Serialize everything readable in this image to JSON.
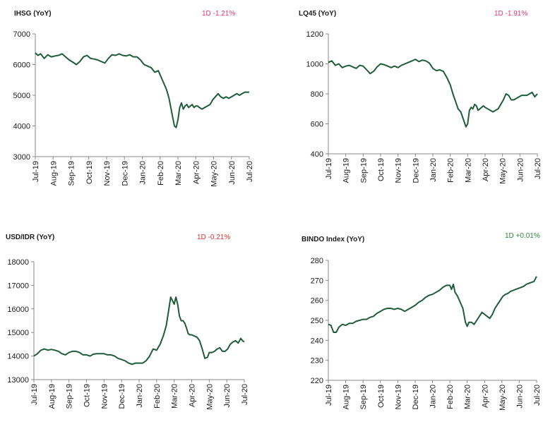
{
  "chart_data": [
    {
      "type": "line",
      "title": "IHSG (YoY)",
      "change_label": "1D -1.21%",
      "change_color": "#e8336e",
      "line_color": "#1f5c3a",
      "xlabel": "",
      "ylabel": "",
      "ylim": [
        3000,
        7000
      ],
      "yticks": [
        3000,
        4000,
        5000,
        6000,
        7000
      ],
      "xticks": [
        "Jul-19",
        "Aug-19",
        "Sep-19",
        "Oct-19",
        "Nov-19",
        "Dec-19",
        "Jan-20",
        "Feb-20",
        "Mar-20",
        "Apr-20",
        "May-20",
        "Jun-20",
        "Jul-20"
      ],
      "grid": false,
      "series": [
        {
          "x": [
            0,
            0.15,
            0.3,
            0.5,
            0.7,
            0.9,
            1.1,
            1.3,
            1.5,
            1.7,
            1.9,
            2.1,
            2.3,
            2.5,
            2.7,
            2.9,
            3.1,
            3.3,
            3.5,
            3.7,
            3.9,
            4.1,
            4.3,
            4.5,
            4.7,
            4.9,
            5.1,
            5.3,
            5.5,
            5.7,
            5.9,
            6.1,
            6.3,
            6.5,
            6.7,
            6.9,
            7.05,
            7.2,
            7.35,
            7.5,
            7.6,
            7.7,
            7.8,
            7.9,
            8.0,
            8.1,
            8.2,
            8.3,
            8.4,
            8.5,
            8.6,
            8.7,
            8.8,
            8.9,
            9.0,
            9.1,
            9.2,
            9.35,
            9.5,
            9.65,
            9.8,
            9.95,
            10.1,
            10.25,
            10.4,
            10.55,
            10.7,
            10.85,
            11.0,
            11.15,
            11.3,
            11.45,
            11.6,
            11.75,
            11.9,
            12.0
          ],
          "values": [
            6380,
            6300,
            6350,
            6200,
            6320,
            6250,
            6280,
            6300,
            6350,
            6250,
            6150,
            6080,
            6000,
            6100,
            6250,
            6300,
            6200,
            6180,
            6150,
            6100,
            6050,
            6200,
            6320,
            6300,
            6350,
            6300,
            6280,
            6320,
            6250,
            6250,
            6150,
            6000,
            5950,
            5900,
            5750,
            5800,
            5600,
            5400,
            5200,
            4900,
            4600,
            4300,
            4000,
            3950,
            4200,
            4600,
            4750,
            4550,
            4650,
            4700,
            4600,
            4650,
            4700,
            4600,
            4650,
            4650,
            4600,
            4550,
            4600,
            4650,
            4700,
            4850,
            4950,
            5050,
            4950,
            4900,
            4950,
            4900,
            4950,
            5000,
            5050,
            5000,
            5050,
            5100,
            5100,
            5100
          ]
        }
      ]
    },
    {
      "type": "line",
      "title": "LQ45 (YoY)",
      "change_label": "1D -1.91%",
      "change_color": "#e8336e",
      "line_color": "#1f5c3a",
      "xlabel": "",
      "ylabel": "",
      "ylim": [
        400,
        1200
      ],
      "yticks": [
        400,
        600,
        800,
        1000,
        1200
      ],
      "xticks": [
        "Jul-19",
        "Aug-19",
        "Sep-19",
        "Oct-19",
        "Nov-19",
        "Dec-19",
        "Jan-20",
        "Feb-20",
        "Mar-20",
        "Apr-20",
        "May-20",
        "Jun-20",
        "Jul-20"
      ],
      "grid": false,
      "series": [
        {
          "x": [
            0,
            0.2,
            0.4,
            0.6,
            0.8,
            1.0,
            1.2,
            1.4,
            1.6,
            1.8,
            2.0,
            2.2,
            2.4,
            2.6,
            2.8,
            3.0,
            3.2,
            3.4,
            3.6,
            3.8,
            4.0,
            4.2,
            4.4,
            4.6,
            4.8,
            5.0,
            5.2,
            5.4,
            5.6,
            5.8,
            6.0,
            6.2,
            6.4,
            6.6,
            6.8,
            7.0,
            7.15,
            7.3,
            7.45,
            7.6,
            7.75,
            7.9,
            8.0,
            8.1,
            8.2,
            8.3,
            8.4,
            8.5,
            8.6,
            8.7,
            8.8,
            8.9,
            9.0,
            9.15,
            9.3,
            9.45,
            9.6,
            9.75,
            9.9,
            10.05,
            10.2,
            10.35,
            10.5,
            10.65,
            10.8,
            10.95,
            11.1,
            11.25,
            11.4,
            11.55,
            11.7,
            11.85,
            12.0
          ],
          "values": [
            1010,
            1020,
            990,
            1000,
            975,
            985,
            990,
            980,
            970,
            990,
            985,
            960,
            935,
            950,
            980,
            1000,
            995,
            985,
            975,
            985,
            975,
            990,
            1000,
            1010,
            1020,
            1030,
            1015,
            1025,
            1020,
            1005,
            970,
            955,
            960,
            950,
            910,
            860,
            800,
            750,
            700,
            680,
            630,
            580,
            600,
            690,
            710,
            700,
            730,
            720,
            690,
            700,
            710,
            720,
            710,
            700,
            690,
            680,
            690,
            700,
            730,
            760,
            800,
            790,
            760,
            760,
            770,
            780,
            790,
            790,
            790,
            800,
            810,
            780,
            800
          ]
        }
      ]
    },
    {
      "type": "line",
      "title": "USD/IDR  (YoY)",
      "change_label": "1D -0.21%",
      "change_color": "#e03030",
      "line_color": "#1f5c3a",
      "xlabel": "",
      "ylabel": "",
      "ylim": [
        13000,
        18000
      ],
      "yticks": [
        13000,
        14000,
        15000,
        16000,
        17000,
        18000
      ],
      "xticks": [
        "Jul-19",
        "Aug-19",
        "Sep-19",
        "Oct-19",
        "Nov-19",
        "Dec-19",
        "Jan-20",
        "Feb-20",
        "Mar-20",
        "Apr-20",
        "May-20",
        "Jun-20",
        "Jul-20"
      ],
      "grid": false,
      "series": [
        {
          "x": [
            0,
            0.2,
            0.4,
            0.6,
            0.8,
            1.0,
            1.2,
            1.4,
            1.6,
            1.8,
            2.0,
            2.2,
            2.4,
            2.6,
            2.8,
            3.0,
            3.2,
            3.4,
            3.6,
            3.8,
            4.0,
            4.2,
            4.4,
            4.6,
            4.8,
            5.0,
            5.2,
            5.4,
            5.6,
            5.8,
            6.0,
            6.2,
            6.4,
            6.6,
            6.8,
            7.0,
            7.2,
            7.4,
            7.55,
            7.7,
            7.8,
            7.9,
            8.0,
            8.1,
            8.2,
            8.3,
            8.4,
            8.5,
            8.6,
            8.7,
            8.8,
            8.9,
            9.0,
            9.15,
            9.3,
            9.45,
            9.6,
            9.75,
            9.9,
            10.0,
            10.15,
            10.3,
            10.45,
            10.6,
            10.75,
            10.9,
            11.05,
            11.2,
            11.35,
            11.5,
            11.65,
            11.8,
            11.9,
            12.0
          ],
          "values": [
            14000,
            14100,
            14250,
            14300,
            14250,
            14280,
            14250,
            14200,
            14100,
            14050,
            14150,
            14200,
            14200,
            14150,
            14050,
            14050,
            14000,
            14080,
            14100,
            14100,
            14100,
            14050,
            14050,
            14000,
            13900,
            13850,
            13800,
            13700,
            13650,
            13700,
            13700,
            13700,
            13800,
            14000,
            14300,
            14250,
            14500,
            14900,
            15300,
            16000,
            16500,
            16350,
            16200,
            16500,
            16200,
            15700,
            15500,
            15500,
            15400,
            15200,
            14950,
            14900,
            14900,
            14850,
            14800,
            14650,
            14300,
            13900,
            13950,
            14150,
            14150,
            14200,
            14300,
            14350,
            14200,
            14200,
            14300,
            14500,
            14600,
            14650,
            14550,
            14750,
            14650,
            14600
          ]
        }
      ]
    },
    {
      "type": "line",
      "title": "BINDO Index (YoY)",
      "change_label": "1D +0.01%",
      "change_color": "#2e8b3a",
      "line_color": "#1f5c3a",
      "xlabel": "",
      "ylabel": "",
      "ylim": [
        220,
        280
      ],
      "yticks": [
        220,
        230,
        240,
        250,
        260,
        270,
        280
      ],
      "xticks": [
        "Jul-19",
        "Aug-19",
        "Sep-19",
        "Oct-19",
        "Nov-19",
        "Dec-19",
        "Jan-20",
        "Feb-20",
        "Mar-20",
        "Apr-20",
        "May-20",
        "Jun-20",
        "Jul-20"
      ],
      "grid": false,
      "series": [
        {
          "x": [
            0,
            0.15,
            0.3,
            0.45,
            0.6,
            0.8,
            1.0,
            1.2,
            1.4,
            1.6,
            1.8,
            2.0,
            2.2,
            2.4,
            2.6,
            2.8,
            3.0,
            3.2,
            3.4,
            3.6,
            3.8,
            4.0,
            4.2,
            4.4,
            4.6,
            4.8,
            5.0,
            5.2,
            5.4,
            5.6,
            5.8,
            6.0,
            6.2,
            6.4,
            6.6,
            6.8,
            7.0,
            7.1,
            7.2,
            7.3,
            7.45,
            7.6,
            7.75,
            7.9,
            8.0,
            8.1,
            8.25,
            8.4,
            8.55,
            8.7,
            8.85,
            9.0,
            9.15,
            9.3,
            9.45,
            9.6,
            9.75,
            9.9,
            10.05,
            10.2,
            10.35,
            10.5,
            10.65,
            10.8,
            10.95,
            11.1,
            11.25,
            11.4,
            11.55,
            11.7,
            11.85,
            12.0
          ],
          "values": [
            248,
            247.5,
            244,
            244,
            246.5,
            248,
            247.5,
            248.5,
            248.5,
            249.5,
            250,
            250.5,
            250.5,
            251.5,
            252,
            253.5,
            254.5,
            255.5,
            256,
            256,
            255.5,
            256,
            255.5,
            254.5,
            255.5,
            256.5,
            257.5,
            259,
            260,
            261.5,
            262.5,
            263,
            264,
            265,
            266.5,
            267.5,
            267.5,
            265.5,
            268,
            264,
            262,
            259,
            256,
            249,
            247,
            249,
            249,
            248,
            250,
            252,
            254,
            253,
            252,
            251,
            253,
            256,
            258,
            260,
            262,
            263,
            263.5,
            264.5,
            265,
            265.5,
            266,
            266.5,
            267,
            268,
            268.5,
            269,
            269.5,
            272
          ]
        }
      ]
    }
  ]
}
